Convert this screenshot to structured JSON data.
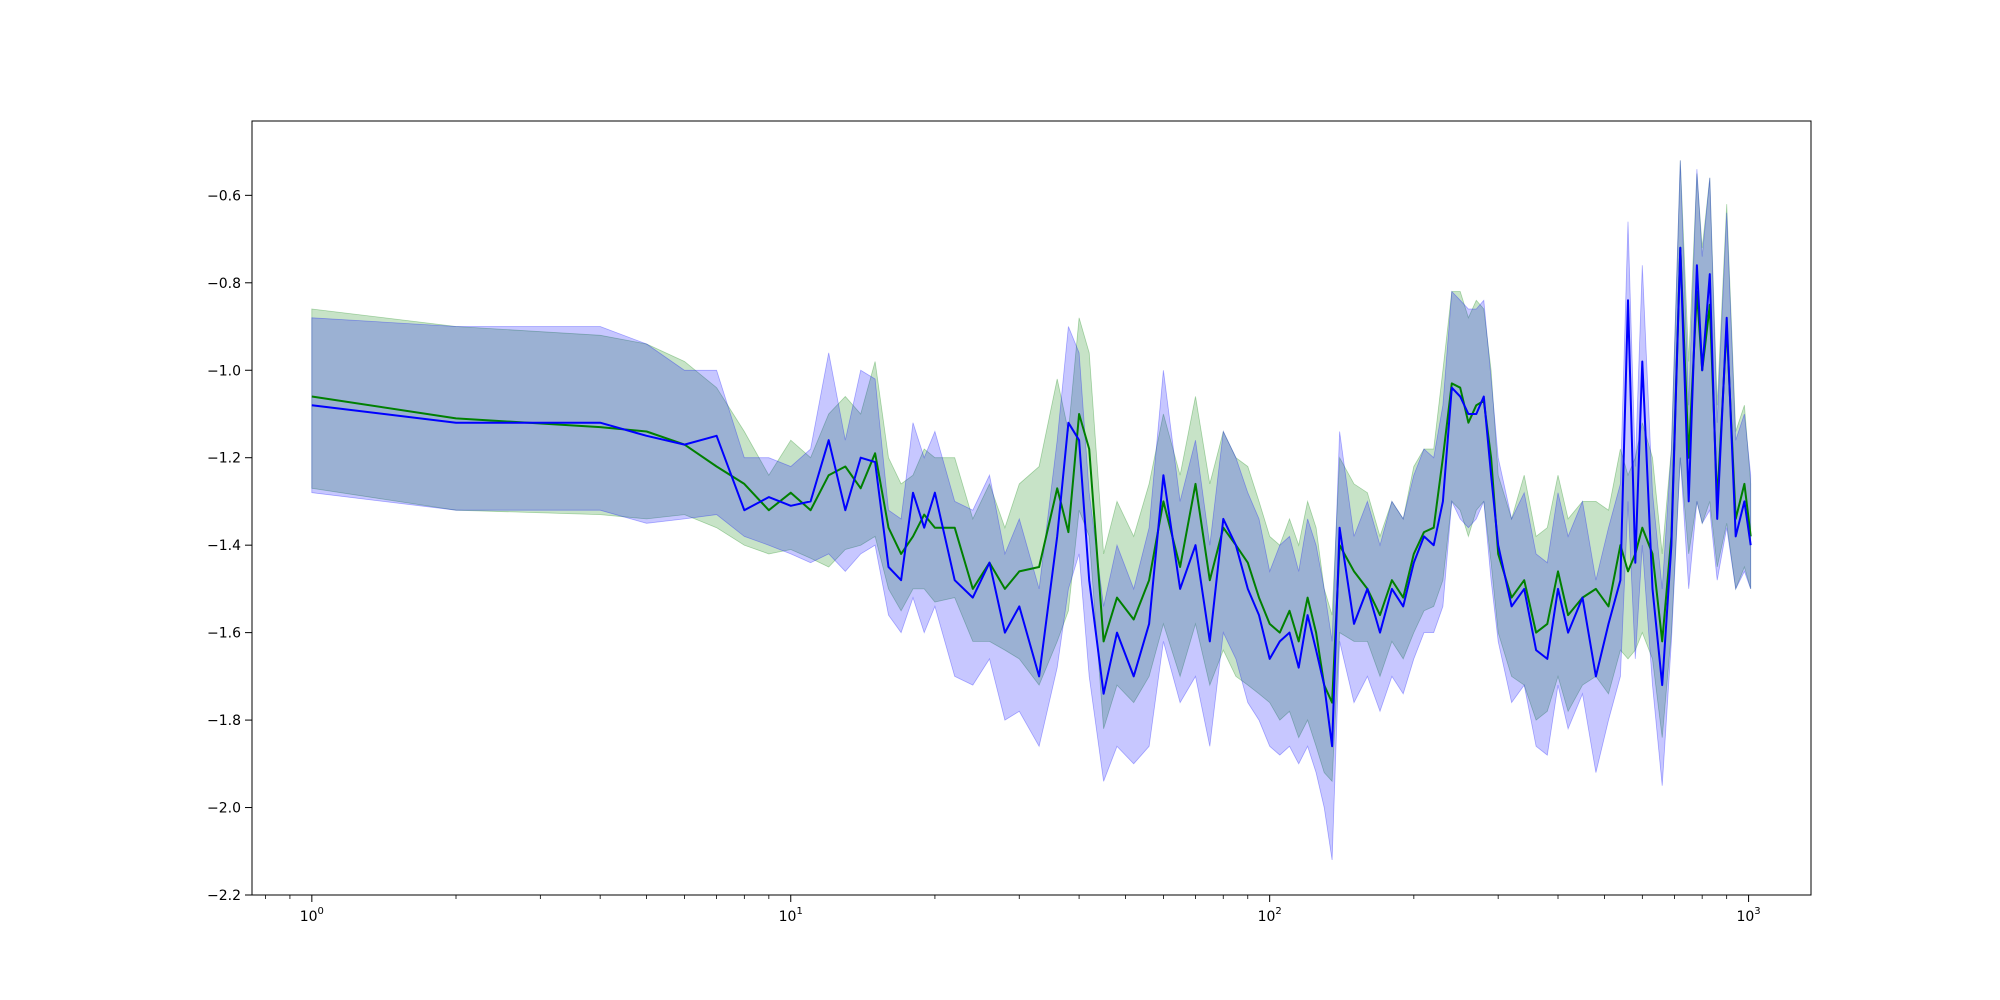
{
  "chart_data": {
    "type": "line",
    "title": "",
    "xlabel": "",
    "ylabel": "",
    "xscale": "log",
    "xlim": [
      0.75,
      1350
    ],
    "ylim": [
      -2.2,
      -0.43
    ],
    "grid": false,
    "legend": "none",
    "x_ticks": [
      {
        "base": "10",
        "exp": "0",
        "value": 1
      },
      {
        "base": "10",
        "exp": "1",
        "value": 10
      },
      {
        "base": "10",
        "exp": "2",
        "value": 100
      },
      {
        "base": "10",
        "exp": "3",
        "value": 1000
      }
    ],
    "y_ticks": [
      {
        "label": "−0.6",
        "value": -0.6
      },
      {
        "label": "−0.8",
        "value": -0.8
      },
      {
        "label": "−1.0",
        "value": -1.0
      },
      {
        "label": "−1.2",
        "value": -1.2
      },
      {
        "label": "−1.4",
        "value": -1.4
      },
      {
        "label": "−1.6",
        "value": -1.6
      },
      {
        "label": "−1.8",
        "value": -1.8
      },
      {
        "label": "−2.0",
        "value": -2.0
      },
      {
        "label": "−2.2",
        "value": -2.2
      }
    ],
    "series": [
      {
        "color": "#008000",
        "band_color": "#008000",
        "x": [
          1,
          2,
          4,
          5,
          6,
          7,
          8,
          9,
          10,
          11,
          12,
          13,
          14,
          15,
          16,
          17,
          18,
          19,
          20,
          22,
          24,
          26,
          28,
          30,
          33,
          36,
          38,
          40,
          42,
          45,
          48,
          52,
          56,
          60,
          65,
          70,
          75,
          80,
          85,
          90,
          95,
          100,
          105,
          110,
          115,
          120,
          125,
          130,
          135,
          140,
          150,
          160,
          170,
          180,
          190,
          200,
          210,
          220,
          230,
          240,
          250,
          260,
          270,
          280,
          290,
          300,
          320,
          340,
          360,
          380,
          400,
          420,
          450,
          480,
          510,
          540,
          560,
          580,
          600,
          630,
          660,
          690,
          720,
          750,
          780,
          800,
          830,
          860,
          900,
          940,
          980,
          1010
        ],
        "y": [
          -1.06,
          -1.11,
          -1.13,
          -1.14,
          -1.17,
          -1.22,
          -1.26,
          -1.32,
          -1.28,
          -1.32,
          -1.24,
          -1.22,
          -1.27,
          -1.19,
          -1.36,
          -1.42,
          -1.38,
          -1.33,
          -1.36,
          -1.36,
          -1.5,
          -1.44,
          -1.5,
          -1.46,
          -1.45,
          -1.27,
          -1.37,
          -1.1,
          -1.18,
          -1.62,
          -1.52,
          -1.57,
          -1.48,
          -1.3,
          -1.45,
          -1.26,
          -1.48,
          -1.36,
          -1.4,
          -1.44,
          -1.52,
          -1.58,
          -1.6,
          -1.55,
          -1.62,
          -1.52,
          -1.6,
          -1.72,
          -1.76,
          -1.4,
          -1.46,
          -1.5,
          -1.56,
          -1.48,
          -1.52,
          -1.42,
          -1.37,
          -1.36,
          -1.2,
          -1.03,
          -1.04,
          -1.12,
          -1.08,
          -1.07,
          -1.2,
          -1.42,
          -1.52,
          -1.48,
          -1.6,
          -1.58,
          -1.46,
          -1.56,
          -1.52,
          -1.5,
          -1.54,
          -1.4,
          -1.46,
          -1.42,
          -1.36,
          -1.42,
          -1.62,
          -1.38,
          -0.72,
          -1.2,
          -0.82,
          -1.0,
          -0.85,
          -1.3,
          -0.9,
          -1.34,
          -1.26,
          -1.38
        ],
        "lower": [
          -1.27,
          -1.32,
          -1.33,
          -1.34,
          -1.33,
          -1.36,
          -1.4,
          -1.42,
          -1.41,
          -1.43,
          -1.45,
          -1.41,
          -1.4,
          -1.38,
          -1.5,
          -1.55,
          -1.5,
          -1.5,
          -1.53,
          -1.52,
          -1.62,
          -1.62,
          -1.64,
          -1.66,
          -1.72,
          -1.62,
          -1.55,
          -1.32,
          -1.38,
          -1.82,
          -1.72,
          -1.76,
          -1.7,
          -1.58,
          -1.7,
          -1.58,
          -1.72,
          -1.64,
          -1.7,
          -1.72,
          -1.74,
          -1.76,
          -1.8,
          -1.78,
          -1.84,
          -1.8,
          -1.86,
          -1.92,
          -1.94,
          -1.6,
          -1.62,
          -1.62,
          -1.7,
          -1.62,
          -1.66,
          -1.6,
          -1.55,
          -1.54,
          -1.48,
          -1.3,
          -1.32,
          -1.38,
          -1.32,
          -1.3,
          -1.44,
          -1.6,
          -1.7,
          -1.72,
          -1.8,
          -1.78,
          -1.7,
          -1.78,
          -1.72,
          -1.7,
          -1.74,
          -1.64,
          -1.66,
          -1.64,
          -1.6,
          -1.66,
          -1.84,
          -1.6,
          -1.2,
          -1.42,
          -1.3,
          -1.35,
          -1.3,
          -1.45,
          -1.35,
          -1.5,
          -1.45,
          -1.5
        ],
        "upper": [
          -0.86,
          -0.9,
          -0.92,
          -0.94,
          -0.98,
          -1.04,
          -1.14,
          -1.24,
          -1.16,
          -1.2,
          -1.1,
          -1.06,
          -1.1,
          -0.98,
          -1.2,
          -1.26,
          -1.24,
          -1.18,
          -1.2,
          -1.2,
          -1.34,
          -1.26,
          -1.36,
          -1.26,
          -1.22,
          -1.02,
          -1.14,
          -0.88,
          -0.96,
          -1.42,
          -1.3,
          -1.38,
          -1.26,
          -1.1,
          -1.24,
          -1.06,
          -1.26,
          -1.14,
          -1.2,
          -1.22,
          -1.3,
          -1.38,
          -1.4,
          -1.34,
          -1.4,
          -1.3,
          -1.36,
          -1.5,
          -1.56,
          -1.2,
          -1.26,
          -1.28,
          -1.38,
          -1.3,
          -1.34,
          -1.22,
          -1.18,
          -1.18,
          -1.0,
          -0.82,
          -0.82,
          -0.88,
          -0.84,
          -0.86,
          -1.0,
          -1.24,
          -1.34,
          -1.24,
          -1.38,
          -1.36,
          -1.24,
          -1.34,
          -1.3,
          -1.3,
          -1.32,
          -1.18,
          -1.24,
          -1.2,
          -1.12,
          -1.2,
          -1.42,
          -1.18,
          -0.52,
          -0.98,
          -0.55,
          -0.72,
          -0.56,
          -1.08,
          -0.62,
          -1.14,
          -1.08,
          -1.26
        ]
      },
      {
        "color": "#0000ff",
        "band_color": "#0000ff",
        "x": [
          1,
          2,
          4,
          5,
          6,
          7,
          8,
          9,
          10,
          11,
          12,
          13,
          14,
          15,
          16,
          17,
          18,
          19,
          20,
          22,
          24,
          26,
          28,
          30,
          33,
          36,
          38,
          40,
          42,
          45,
          48,
          52,
          56,
          60,
          65,
          70,
          75,
          80,
          85,
          90,
          95,
          100,
          105,
          110,
          115,
          120,
          125,
          130,
          135,
          140,
          150,
          160,
          170,
          180,
          190,
          200,
          210,
          220,
          230,
          240,
          250,
          260,
          270,
          280,
          290,
          300,
          320,
          340,
          360,
          380,
          400,
          420,
          450,
          480,
          510,
          540,
          560,
          580,
          600,
          630,
          660,
          690,
          720,
          750,
          780,
          800,
          830,
          860,
          900,
          940,
          980,
          1010
        ],
        "y": [
          -1.08,
          -1.12,
          -1.12,
          -1.15,
          -1.17,
          -1.15,
          -1.32,
          -1.29,
          -1.31,
          -1.3,
          -1.16,
          -1.32,
          -1.2,
          -1.21,
          -1.45,
          -1.48,
          -1.28,
          -1.36,
          -1.28,
          -1.48,
          -1.52,
          -1.44,
          -1.6,
          -1.54,
          -1.7,
          -1.38,
          -1.12,
          -1.16,
          -1.48,
          -1.74,
          -1.6,
          -1.7,
          -1.58,
          -1.24,
          -1.5,
          -1.4,
          -1.62,
          -1.34,
          -1.4,
          -1.5,
          -1.56,
          -1.66,
          -1.62,
          -1.6,
          -1.68,
          -1.56,
          -1.64,
          -1.72,
          -1.86,
          -1.36,
          -1.58,
          -1.5,
          -1.6,
          -1.5,
          -1.54,
          -1.44,
          -1.38,
          -1.4,
          -1.3,
          -1.04,
          -1.06,
          -1.1,
          -1.1,
          -1.06,
          -1.24,
          -1.4,
          -1.54,
          -1.5,
          -1.64,
          -1.66,
          -1.5,
          -1.6,
          -1.52,
          -1.7,
          -1.58,
          -1.48,
          -0.84,
          -1.44,
          -0.98,
          -1.5,
          -1.72,
          -1.4,
          -0.72,
          -1.3,
          -0.76,
          -1.0,
          -0.78,
          -1.34,
          -0.88,
          -1.38,
          -1.3,
          -1.4
        ],
        "lower": [
          -1.28,
          -1.32,
          -1.32,
          -1.35,
          -1.34,
          -1.33,
          -1.38,
          -1.4,
          -1.42,
          -1.44,
          -1.42,
          -1.46,
          -1.42,
          -1.4,
          -1.56,
          -1.6,
          -1.52,
          -1.6,
          -1.54,
          -1.7,
          -1.72,
          -1.66,
          -1.8,
          -1.78,
          -1.86,
          -1.68,
          -1.5,
          -1.42,
          -1.7,
          -1.94,
          -1.86,
          -1.9,
          -1.86,
          -1.62,
          -1.76,
          -1.7,
          -1.86,
          -1.6,
          -1.66,
          -1.76,
          -1.8,
          -1.86,
          -1.88,
          -1.86,
          -1.9,
          -1.86,
          -1.92,
          -2.0,
          -2.12,
          -1.62,
          -1.76,
          -1.7,
          -1.78,
          -1.7,
          -1.74,
          -1.66,
          -1.6,
          -1.6,
          -1.54,
          -1.3,
          -1.34,
          -1.36,
          -1.34,
          -1.3,
          -1.48,
          -1.62,
          -1.76,
          -1.72,
          -1.86,
          -1.88,
          -1.72,
          -1.82,
          -1.74,
          -1.92,
          -1.8,
          -1.7,
          -1.3,
          -1.66,
          -1.4,
          -1.72,
          -1.95,
          -1.62,
          -1.2,
          -1.5,
          -1.3,
          -1.35,
          -1.32,
          -1.48,
          -1.36,
          -1.5,
          -1.46,
          -1.5
        ],
        "upper": [
          -0.88,
          -0.9,
          -0.9,
          -0.94,
          -1.0,
          -1.0,
          -1.2,
          -1.2,
          -1.22,
          -1.18,
          -0.96,
          -1.16,
          -1.0,
          -1.02,
          -1.32,
          -1.34,
          -1.12,
          -1.2,
          -1.14,
          -1.3,
          -1.32,
          -1.24,
          -1.42,
          -1.34,
          -1.5,
          -1.16,
          -0.9,
          -0.96,
          -1.28,
          -1.54,
          -1.4,
          -1.5,
          -1.36,
          -1.0,
          -1.3,
          -1.16,
          -1.4,
          -1.14,
          -1.2,
          -1.28,
          -1.34,
          -1.46,
          -1.4,
          -1.38,
          -1.46,
          -1.34,
          -1.4,
          -1.5,
          -1.62,
          -1.14,
          -1.38,
          -1.3,
          -1.4,
          -1.3,
          -1.34,
          -1.24,
          -1.18,
          -1.2,
          -1.08,
          -0.82,
          -0.84,
          -0.86,
          -0.86,
          -0.84,
          -1.02,
          -1.2,
          -1.34,
          -1.28,
          -1.42,
          -1.44,
          -1.28,
          -1.38,
          -1.3,
          -1.48,
          -1.36,
          -1.26,
          -0.66,
          -1.22,
          -0.76,
          -1.28,
          -1.5,
          -1.18,
          -0.52,
          -1.08,
          -0.54,
          -0.74,
          -0.56,
          -1.12,
          -0.64,
          -1.16,
          -1.1,
          -1.24
        ]
      }
    ]
  }
}
